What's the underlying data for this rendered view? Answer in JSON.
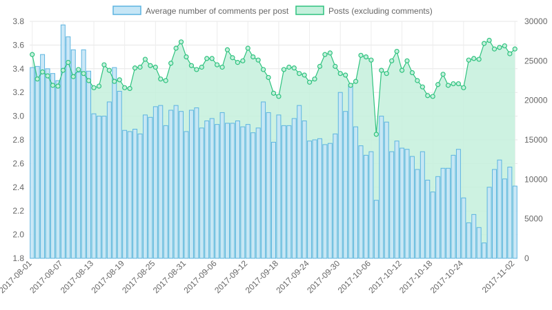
{
  "chart_data": {
    "type": "bar",
    "legend": {
      "position": "top",
      "items": [
        {
          "label": "Average number of comments per post",
          "fill": "#c6e6f6",
          "stroke": "#5bb4e0"
        },
        {
          "label": "Posts (excluding comments)",
          "fill": "#c4f0dc",
          "stroke": "#2ec27e"
        }
      ]
    },
    "y_left": {
      "min": 1.8,
      "max": 3.8,
      "ticks": [
        "1.8",
        "2.0",
        "2.2",
        "2.4",
        "2.6",
        "2.8",
        "3.0",
        "3.2",
        "3.4",
        "3.6",
        "3.8"
      ]
    },
    "y_right": {
      "min": 0,
      "max": 30000,
      "ticks": [
        "0",
        "5000",
        "10000",
        "15000",
        "20000",
        "25000",
        "30000"
      ]
    },
    "x_tick_labels": [
      "2017-08-01",
      "2017-08-07",
      "2017-08-13",
      "2017-08-19",
      "2017-08-25",
      "2017-08-31",
      "2017-09-06",
      "2017-09-12",
      "2017-09-18",
      "2017-09-24",
      "2017-09-30",
      "2017-10-06",
      "2017-10-12",
      "2017-10-18",
      "2017-10-24",
      "2017-11-02"
    ],
    "grid": true,
    "series": [
      {
        "name": "Average number of comments per post",
        "type": "bar",
        "axis": "left",
        "color": "#5bb4e0",
        "fill": "#c6e6f6",
        "values": [
          3.41,
          3.42,
          3.52,
          3.4,
          3.36,
          3.3,
          3.77,
          3.67,
          3.56,
          3.37,
          3.56,
          3.38,
          3.02,
          3.0,
          3.0,
          3.12,
          3.41,
          3.21,
          2.88,
          2.87,
          2.89,
          2.85,
          3.01,
          2.99,
          3.08,
          3.09,
          2.92,
          3.05,
          3.09,
          3.04,
          2.87,
          3.05,
          3.07,
          2.9,
          2.96,
          2.98,
          2.93,
          3.03,
          2.94,
          2.94,
          2.96,
          2.91,
          2.93,
          2.86,
          2.9,
          3.12,
          3.03,
          2.78,
          3.01,
          2.92,
          2.92,
          2.98,
          3.09,
          2.96,
          2.79,
          2.8,
          2.81,
          2.76,
          2.77,
          2.85,
          3.2,
          3.04,
          3.27,
          2.91,
          2.75,
          2.67,
          2.7,
          2.29,
          3.0,
          2.95,
          2.7,
          2.79,
          2.73,
          2.72,
          2.66,
          2.55,
          2.7,
          2.46,
          2.36,
          2.49,
          2.56,
          2.56,
          2.67,
          2.72,
          2.31,
          2.1,
          2.17,
          2.06,
          1.93,
          2.4,
          2.55,
          2.63,
          2.47,
          2.57,
          2.41
        ]
      },
      {
        "name": "Posts (excluding comments)",
        "type": "area",
        "axis": "right",
        "color": "#2ec27e",
        "fill": "#c4f0dc",
        "values": [
          25800,
          22700,
          23600,
          23100,
          21900,
          21800,
          23800,
          24800,
          23000,
          23900,
          23400,
          22500,
          21600,
          21800,
          24500,
          23800,
          22400,
          22600,
          21600,
          21500,
          24100,
          24200,
          25200,
          24400,
          24200,
          22700,
          22500,
          24700,
          26600,
          27400,
          25500,
          24400,
          23900,
          24200,
          25300,
          25300,
          24500,
          24200,
          26400,
          25400,
          24800,
          25000,
          26600,
          25500,
          25100,
          23900,
          22900,
          20900,
          20500,
          23900,
          24200,
          24100,
          23400,
          23200,
          22300,
          22700,
          24300,
          25800,
          26000,
          24300,
          23400,
          23200,
          21900,
          22400,
          25700,
          25500,
          25100,
          15700,
          23800,
          23400,
          25000,
          26200,
          23800,
          25000,
          23500,
          22500,
          21700,
          20600,
          20500,
          22000,
          23300,
          21900,
          22100,
          22100,
          21600,
          25100,
          25300,
          25200,
          27200,
          27600,
          26500,
          26700,
          26900,
          25900,
          26500
        ]
      }
    ]
  }
}
